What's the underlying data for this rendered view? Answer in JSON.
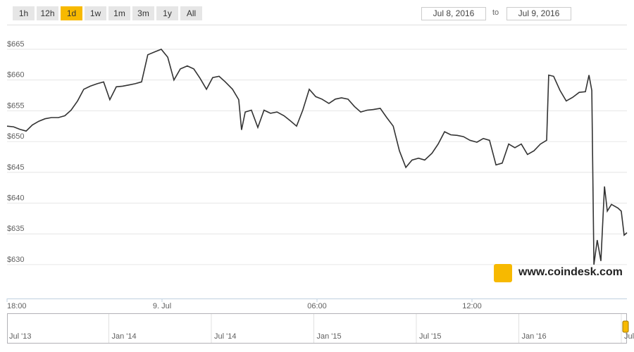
{
  "range_buttons": [
    "1h",
    "12h",
    "1d",
    "1w",
    "1m",
    "3m",
    "1y",
    "All"
  ],
  "active_button": 2,
  "date_range": {
    "from": "Jul 8, 2016",
    "to_label": "to",
    "to": "Jul 9, 2016"
  },
  "watermark": "www.coindesk.com",
  "navigator": {
    "labels": [
      "Jul '13",
      "Jan '14",
      "Jul '14",
      "Jan '15",
      "Jul '15",
      "Jan '16",
      "Jul"
    ]
  },
  "chart_data": {
    "type": "line",
    "color": "#333333",
    "grid": true,
    "x": [
      0,
      0.25,
      0.49,
      0.74,
      0.98,
      1.23,
      1.47,
      1.72,
      1.99,
      2.24,
      2.48,
      2.73,
      2.97,
      3.22,
      3.49,
      3.74,
      3.98,
      4.23,
      4.47,
      4.72,
      4.96,
      5.21,
      5.45,
      5.73,
      5.97,
      6.22,
      6.46,
      6.71,
      6.98,
      7.23,
      7.47,
      7.72,
      7.96,
      8.21,
      8.45,
      8.73,
      8.97,
      9.08,
      9.22,
      9.46,
      9.71,
      9.95,
      10.2,
      10.45,
      10.72,
      10.96,
      11.21,
      11.45,
      11.7,
      11.95,
      12.19,
      12.46,
      12.71,
      12.95,
      13.2,
      13.45,
      13.69,
      13.94,
      14.18,
      14.45,
      14.7,
      14.95,
      15.19,
      15.44,
      15.68,
      15.93,
      16.17,
      16.45,
      16.69,
      16.94,
      17.18,
      17.43,
      17.67,
      17.92,
      18.19,
      18.44,
      18.68,
      18.93,
      19.17,
      19.42,
      19.66,
      19.91,
      20.15,
      20.4,
      20.65,
      20.89,
      20.97,
      21.16,
      21.41,
      21.65,
      21.9,
      22.15,
      22.39,
      22.53,
      22.64,
      22.72,
      22.85,
      22.99,
      23.13,
      23.24,
      23.4,
      23.65,
      23.78,
      23.89,
      24
    ],
    "values": [
      652.5,
      652.4,
      652.0,
      651.7,
      652.7,
      653.3,
      653.7,
      653.9,
      653.9,
      654.2,
      655.1,
      656.6,
      658.5,
      659.0,
      659.4,
      659.7,
      656.8,
      658.9,
      659.0,
      659.2,
      659.4,
      659.7,
      664.1,
      664.6,
      665.0,
      663.7,
      660.0,
      661.8,
      662.3,
      661.8,
      660.3,
      658.5,
      660.4,
      660.6,
      659.7,
      658.5,
      656.8,
      651.9,
      654.8,
      655.1,
      652.3,
      655.1,
      654.6,
      654.8,
      654.2,
      653.4,
      652.5,
      655.1,
      658.5,
      657.3,
      656.9,
      656.2,
      656.9,
      657.1,
      656.9,
      655.7,
      654.8,
      655.1,
      655.2,
      655.4,
      653.9,
      652.5,
      648.5,
      645.8,
      647.0,
      647.3,
      647.0,
      648.1,
      649.6,
      651.6,
      651.1,
      651.0,
      650.8,
      650.2,
      649.9,
      650.5,
      650.2,
      646.2,
      646.5,
      649.6,
      649.0,
      649.6,
      647.9,
      648.5,
      649.6,
      650.2,
      660.8,
      660.6,
      658.3,
      656.6,
      657.2,
      658.0,
      658.1,
      660.8,
      658.3,
      630.0,
      634.0,
      630.6,
      642.7,
      638.7,
      639.8,
      639.2,
      638.7,
      634.8,
      635.2
    ],
    "xlim": [
      0,
      24
    ],
    "xticks": [
      {
        "value": 0,
        "label": "18:00"
      },
      {
        "value": 6,
        "label": "9. Jul"
      },
      {
        "value": 12,
        "label": "06:00"
      },
      {
        "value": 18,
        "label": "12:00"
      }
    ],
    "ylim": [
      624.5,
      669
    ],
    "yticks": [
      {
        "value": 630,
        "label": "$630"
      },
      {
        "value": 635,
        "label": "$635"
      },
      {
        "value": 640,
        "label": "$640"
      },
      {
        "value": 645,
        "label": "$645"
      },
      {
        "value": 650,
        "label": "$650"
      },
      {
        "value": 655,
        "label": "$655"
      },
      {
        "value": 660,
        "label": "$660"
      },
      {
        "value": 665,
        "label": "$665"
      }
    ]
  }
}
